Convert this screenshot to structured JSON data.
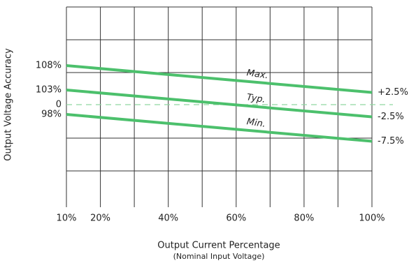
{
  "chart_data": {
    "type": "line",
    "y_label": "Output Voltage Accuracy",
    "x_label": "Output Current Percentage",
    "x_sublabel": "(Nominal Input Voltage)",
    "x": [
      10,
      100
    ],
    "xlim": [
      10,
      100
    ],
    "xticks": [
      {
        "value": 10,
        "label": "10%"
      },
      {
        "value": 20,
        "label": "20%"
      },
      {
        "value": 40,
        "label": "40%"
      },
      {
        "value": 60,
        "label": "60%"
      },
      {
        "value": 80,
        "label": "80%"
      },
      {
        "value": 100,
        "label": "100%"
      }
    ],
    "ylim": [
      -21,
      20
    ],
    "yticks": [
      {
        "value": 8,
        "label": "108%"
      },
      {
        "value": 3,
        "label": "103%"
      },
      0,
      {
        "value": -2,
        "label": "98%"
      }
    ],
    "series": [
      {
        "name": "Max.",
        "color": "#4cc06c",
        "values": [
          8,
          2.5
        ],
        "value_labels": [
          null,
          "+2.5%"
        ]
      },
      {
        "name": "Typ.",
        "color": "#4cc06c",
        "values": [
          3,
          -2.5
        ],
        "value_labels": [
          null,
          "-2.5%"
        ]
      },
      {
        "name": "Min.",
        "color": "#4cc06c",
        "values": [
          -2,
          -7.5
        ],
        "value_labels": [
          null,
          "-7.5%"
        ]
      }
    ],
    "zero_line_color": "#8fd6a0"
  }
}
